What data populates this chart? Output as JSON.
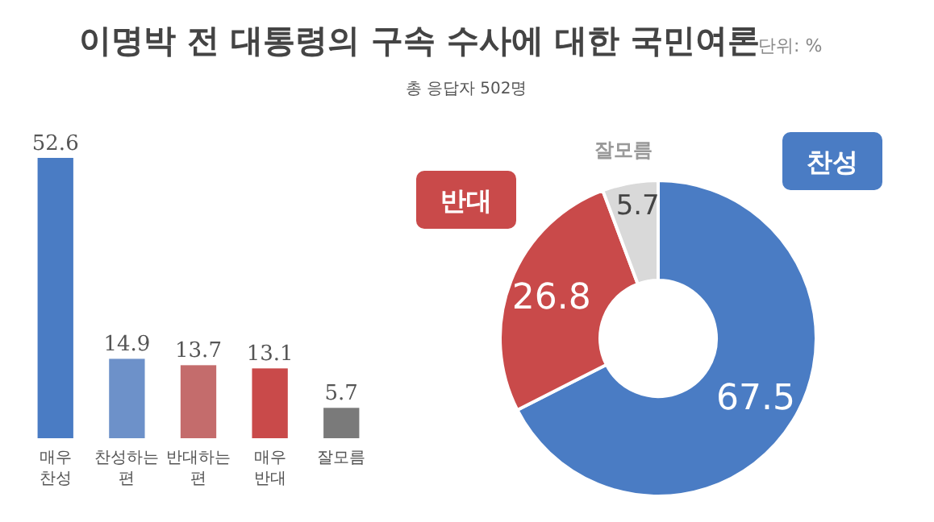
{
  "chart_data": [
    {
      "type": "bar",
      "title": "이명박 전 대통령의 구속 수사에 대한 국민여론",
      "annotations": [
        "단위: %"
      ],
      "categories": [
        "매우 찬성",
        "찬성하는 편",
        "반대하는 편",
        "매우 반대",
        "잘모름"
      ],
      "values": [
        52.6,
        14.9,
        13.7,
        13.1,
        5.7
      ],
      "colors": [
        "#4a7cc4",
        "#6d91c9",
        "#c46c6c",
        "#c94a4a",
        "#7a7a7a"
      ],
      "data_labels": true
    },
    {
      "type": "donut",
      "subtitle": "총 응답자 502명",
      "categories": [
        "찬성",
        "반대",
        "잘모름"
      ],
      "values": [
        67.5,
        26.8,
        5.7
      ],
      "colors": [
        "#4a7cc4",
        "#c94a4a",
        "#d9d9d9"
      ],
      "data_labels": true
    }
  ]
}
